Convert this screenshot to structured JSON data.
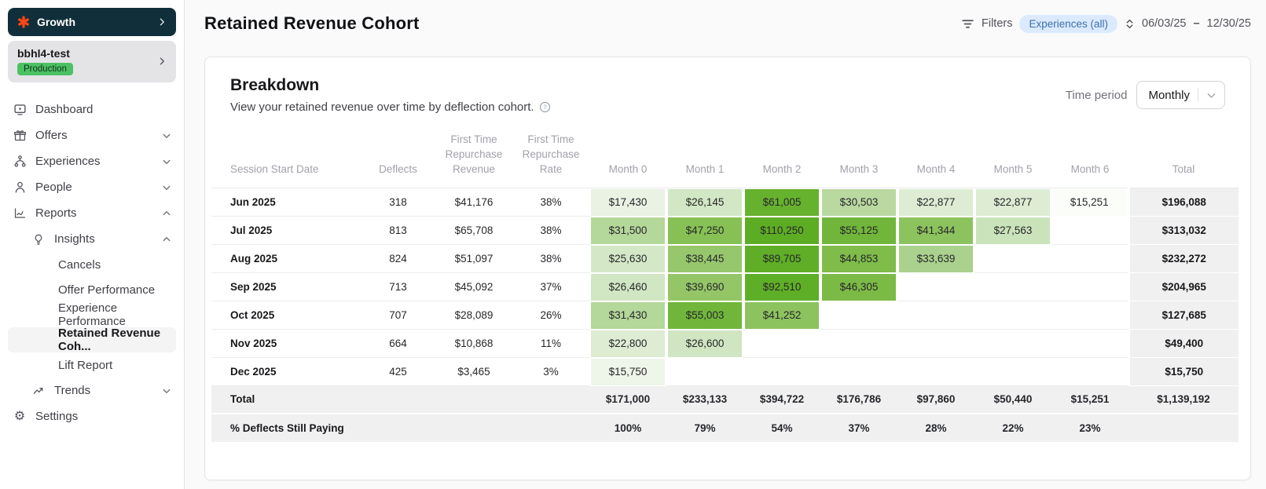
{
  "sidebar": {
    "app_name": "Growth",
    "workspace_name": "bbhl4-test",
    "workspace_badge": "Production",
    "nav": {
      "dashboard": "Dashboard",
      "offers": "Offers",
      "experiences": "Experiences",
      "people": "People",
      "reports": "Reports",
      "insights": "Insights",
      "cancels": "Cancels",
      "offer_performance": "Offer Performance",
      "experience_performance": "Experience Performance",
      "retained_revenue": "Retained Revenue Coh...",
      "lift_report": "Lift Report",
      "trends": "Trends",
      "settings": "Settings"
    }
  },
  "header": {
    "title": "Retained Revenue Cohort",
    "filters_label": "Filters",
    "filter_pill": "Experiences (all)",
    "date_start": "06/03/25",
    "date_sep": "–",
    "date_end": "12/30/25"
  },
  "card": {
    "title": "Breakdown",
    "subtitle": "View your retained revenue over time by deflection cohort.",
    "time_period_label": "Time period",
    "time_period_value": "Monthly"
  },
  "table": {
    "columns": [
      "Session Start Date",
      "Deflects",
      "First Time Repurchase Revenue",
      "First Time Repurchase Rate",
      "Month 0",
      "Month 1",
      "Month 2",
      "Month 3",
      "Month 4",
      "Month 5",
      "Month 6",
      "Total"
    ],
    "rows": [
      {
        "label": "Jun 2025",
        "deflects": "318",
        "ftr_revenue": "$41,176",
        "ftr_rate": "38%",
        "months": [
          {
            "v": "$17,430",
            "c": "#e9f2e3"
          },
          {
            "v": "$26,145",
            "c": "#d2e7c4"
          },
          {
            "v": "$61,005",
            "c": "#66b12e"
          },
          {
            "v": "$30,503",
            "c": "#b9d9a1"
          },
          {
            "v": "$22,877",
            "c": "#ddecd3"
          },
          {
            "v": "$22,877",
            "c": "#ddecd3"
          },
          {
            "v": "$15,251",
            "c": "#fafdf8"
          }
        ],
        "total": "$196,088"
      },
      {
        "label": "Jul 2025",
        "deflects": "813",
        "ftr_revenue": "$65,708",
        "ftr_rate": "38%",
        "months": [
          {
            "v": "$31,500",
            "c": "#b4d79a"
          },
          {
            "v": "$47,250",
            "c": "#87c155"
          },
          {
            "v": "$110,250",
            "c": "#5dad24"
          },
          {
            "v": "$55,125",
            "c": "#71b63b"
          },
          {
            "v": "$41,344",
            "c": "#8dc35e"
          },
          {
            "v": "$27,563",
            "c": "#cbe3bb"
          },
          null
        ],
        "total": "$313,032"
      },
      {
        "label": "Aug 2025",
        "deflects": "824",
        "ftr_revenue": "$51,097",
        "ftr_rate": "38%",
        "months": [
          {
            "v": "$25,630",
            "c": "#d4e8c7"
          },
          {
            "v": "$38,445",
            "c": "#97c76c"
          },
          {
            "v": "$89,705",
            "c": "#60ae28"
          },
          {
            "v": "$44,853",
            "c": "#7fbc4a"
          },
          {
            "v": "$33,639",
            "c": "#aad18d"
          },
          null,
          null
        ],
        "total": "$232,272"
      },
      {
        "label": "Sep 2025",
        "deflects": "713",
        "ftr_revenue": "$45,092",
        "ftr_rate": "37%",
        "months": [
          {
            "v": "$26,460",
            "c": "#d1e6c3"
          },
          {
            "v": "$39,690",
            "c": "#94c668"
          },
          {
            "v": "$92,510",
            "c": "#5fae27"
          },
          {
            "v": "$46,305",
            "c": "#7cba46"
          },
          null,
          null,
          null
        ],
        "total": "$204,965"
      },
      {
        "label": "Oct 2025",
        "deflects": "707",
        "ftr_revenue": "$28,089",
        "ftr_rate": "26%",
        "months": [
          {
            "v": "$31,430",
            "c": "#b4d79a"
          },
          {
            "v": "$55,003",
            "c": "#71b63b"
          },
          {
            "v": "$41,252",
            "c": "#8dc35e"
          },
          null,
          null,
          null,
          null
        ],
        "total": "$127,685"
      },
      {
        "label": "Nov 2025",
        "deflects": "664",
        "ftr_revenue": "$10,868",
        "ftr_rate": "11%",
        "months": [
          {
            "v": "$22,800",
            "c": "#ddecd3"
          },
          {
            "v": "$26,600",
            "c": "#d0e5c1"
          },
          null,
          null,
          null,
          null,
          null
        ],
        "total": "$49,400"
      },
      {
        "label": "Dec 2025",
        "deflects": "425",
        "ftr_revenue": "$3,465",
        "ftr_rate": "3%",
        "months": [
          {
            "v": "$15,750",
            "c": "#eef5e9"
          },
          null,
          null,
          null,
          null,
          null,
          null
        ],
        "total": "$15,750"
      }
    ],
    "footer": {
      "total_label": "Total",
      "totals": [
        "$171,000",
        "$233,133",
        "$394,722",
        "$176,786",
        "$97,860",
        "$50,440",
        "$15,251"
      ],
      "grand_total": "$1,139,192",
      "pct_label": "% Deflects Still Paying",
      "pcts": [
        "100%",
        "79%",
        "54%",
        "37%",
        "28%",
        "22%",
        "23%"
      ]
    }
  },
  "colors": {
    "accent_orange": "#fb4516",
    "sidebar_dark": "#112f3a",
    "production_green": "#4cc163",
    "pill_bg": "#dbeafe",
    "pill_text": "#3a72ad",
    "heat_min": "#eef5e9",
    "heat_max": "#5dad24",
    "footer_bg": "#f0f0f1"
  }
}
